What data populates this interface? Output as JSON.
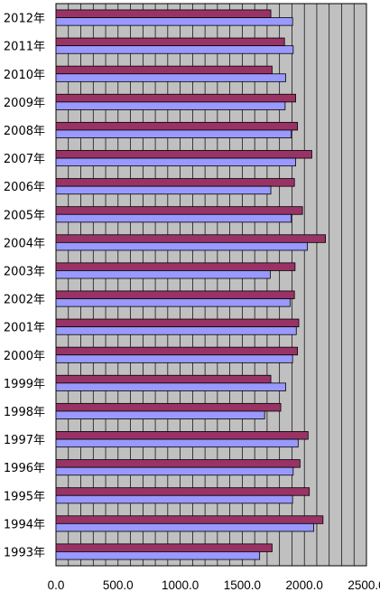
{
  "chart_data": {
    "type": "bar",
    "orientation": "horizontal",
    "title": "",
    "xlabel": "",
    "ylabel": "",
    "xlim": [
      0,
      2500
    ],
    "x_ticks": [
      "0.0",
      "500.0",
      "1000.0",
      "1500.0",
      "2000.0",
      "2500.0"
    ],
    "grid": true,
    "legend": "none",
    "plot_background": "#c0c0c0",
    "categories": [
      "2012年",
      "2011年",
      "2010年",
      "2009年",
      "2008年",
      "2007年",
      "2006年",
      "2005年",
      "2004年",
      "2003年",
      "2002年",
      "2001年",
      "2000年",
      "1999年",
      "1998年",
      "1997年",
      "1996年",
      "1995年",
      "1994年",
      "1993年"
    ],
    "series": [
      {
        "color": "#993366",
        "values": [
          1730,
          1840,
          1740,
          1930,
          1945,
          2060,
          1920,
          1985,
          2170,
          1925,
          1920,
          1955,
          1945,
          1730,
          1810,
          2030,
          1965,
          2040,
          2150,
          1740
        ]
      },
      {
        "color": "#9999ff",
        "values": [
          1905,
          1910,
          1850,
          1845,
          1895,
          1930,
          1730,
          1895,
          2025,
          1725,
          1885,
          1935,
          1905,
          1850,
          1680,
          1950,
          1910,
          1905,
          2075,
          1640
        ]
      }
    ]
  }
}
